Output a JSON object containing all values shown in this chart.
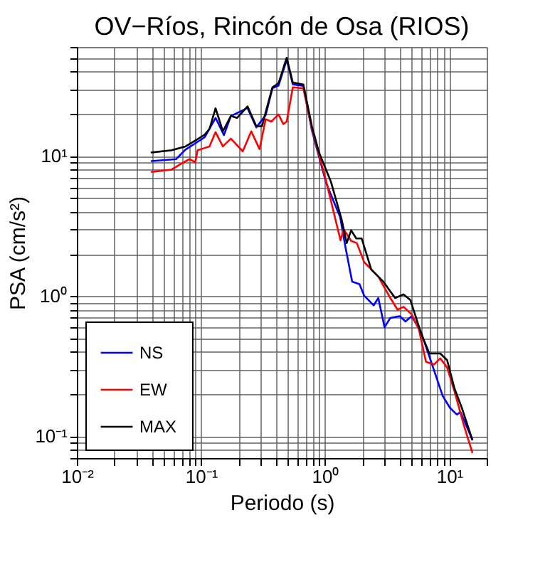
{
  "chart_data": {
    "type": "line",
    "title": "OV−Ríos, Rincón de Osa (RIOS)",
    "xlabel": "Periodo (s)",
    "ylabel": "PSA (cm/s²)",
    "log": "xy",
    "grid": true,
    "legend": "bottom left",
    "line_style": "solid",
    "marker": "none",
    "xlim": [
      0.01,
      20
    ],
    "ylim": [
      0.07,
      60
    ],
    "xticks": [
      {
        "value": 0.01,
        "label": "10⁻²"
      },
      {
        "value": 0.02,
        "label": null
      },
      {
        "value": 0.03,
        "label": null
      },
      {
        "value": 0.04,
        "label": null
      },
      {
        "value": 0.05,
        "label": null
      },
      {
        "value": 0.06,
        "label": null
      },
      {
        "value": 0.07,
        "label": null
      },
      {
        "value": 0.08,
        "label": null
      },
      {
        "value": 0.09,
        "label": null
      },
      {
        "value": 0.1,
        "label": "10⁻¹"
      },
      {
        "value": 0.2,
        "label": null
      },
      {
        "value": 0.3,
        "label": null
      },
      {
        "value": 0.4,
        "label": null
      },
      {
        "value": 0.5,
        "label": null
      },
      {
        "value": 0.6,
        "label": null
      },
      {
        "value": 0.7,
        "label": null
      },
      {
        "value": 0.8,
        "label": null
      },
      {
        "value": 0.9,
        "label": null
      },
      {
        "value": 1,
        "label": "10⁰"
      },
      {
        "value": 2,
        "label": null
      },
      {
        "value": 3,
        "label": null
      },
      {
        "value": 4,
        "label": null
      },
      {
        "value": 5,
        "label": null
      },
      {
        "value": 6,
        "label": null
      },
      {
        "value": 7,
        "label": null
      },
      {
        "value": 8,
        "label": null
      },
      {
        "value": 9,
        "label": null
      },
      {
        "value": 10,
        "label": "10¹"
      },
      {
        "value": 20,
        "label": null
      }
    ],
    "yticks": [
      {
        "value": 0.07,
        "label": null
      },
      {
        "value": 0.08,
        "label": null
      },
      {
        "value": 0.09,
        "label": null
      },
      {
        "value": 0.1,
        "label": "10⁻¹"
      },
      {
        "value": 0.2,
        "label": null
      },
      {
        "value": 0.3,
        "label": null
      },
      {
        "value": 0.4,
        "label": null
      },
      {
        "value": 0.5,
        "label": null
      },
      {
        "value": 0.6,
        "label": null
      },
      {
        "value": 0.7,
        "label": null
      },
      {
        "value": 0.8,
        "label": null
      },
      {
        "value": 0.9,
        "label": null
      },
      {
        "value": 1,
        "label": "10⁰"
      },
      {
        "value": 2,
        "label": null
      },
      {
        "value": 3,
        "label": null
      },
      {
        "value": 4,
        "label": null
      },
      {
        "value": 5,
        "label": null
      },
      {
        "value": 6,
        "label": null
      },
      {
        "value": 7,
        "label": null
      },
      {
        "value": 8,
        "label": null
      },
      {
        "value": 9,
        "label": null
      },
      {
        "value": 10,
        "label": "10¹"
      },
      {
        "value": 20,
        "label": null
      },
      {
        "value": 30,
        "label": null
      },
      {
        "value": 40,
        "label": null
      },
      {
        "value": 50,
        "label": null
      },
      {
        "value": 60,
        "label": null
      }
    ],
    "series": [
      {
        "name": "NS",
        "color": "#0000ff",
        "x": [
          0.04,
          0.063,
          0.075,
          0.107,
          0.131,
          0.153,
          0.174,
          0.237,
          0.279,
          0.332,
          0.376,
          0.421,
          0.49,
          0.549,
          0.667,
          0.782,
          1.02,
          1.32,
          1.45,
          1.65,
          1.89,
          2.06,
          2.46,
          2.68,
          3.01,
          3.35,
          3.99,
          4.44,
          4.98,
          5.94,
          7.4,
          8.83,
          10.1,
          11.5,
          12.3,
          15.3
        ],
        "values": [
          9.2,
          9.5,
          11.1,
          13.6,
          18.7,
          14.1,
          19.3,
          22,
          16,
          19.6,
          30.4,
          31.8,
          48.6,
          32.4,
          31.7,
          15.2,
          6.4,
          3.67,
          2.29,
          1.27,
          1.22,
          1.01,
          0.86,
          0.97,
          0.6,
          0.7,
          0.72,
          0.66,
          0.72,
          0.55,
          0.31,
          0.195,
          0.16,
          0.143,
          0.149,
          0.095
        ]
      },
      {
        "name": "EW",
        "color": "#ff0000",
        "x": [
          0.04,
          0.058,
          0.069,
          0.081,
          0.09,
          0.094,
          0.107,
          0.117,
          0.131,
          0.15,
          0.174,
          0.217,
          0.254,
          0.296,
          0.332,
          0.369,
          0.421,
          0.46,
          0.49,
          0.549,
          0.667,
          0.782,
          1.02,
          1.33,
          1.41,
          1.62,
          1.8,
          2.06,
          2.68,
          3.35,
          3.83,
          4.28,
          4.98,
          5.69,
          6.49,
          7.53,
          8.45,
          9.6,
          11,
          13.1,
          15.3
        ],
        "values": [
          7.7,
          8,
          8.8,
          9.5,
          9,
          11,
          11.4,
          11.7,
          14.8,
          11.7,
          13.3,
          10.8,
          15,
          11.2,
          18.3,
          17.6,
          19.8,
          16.9,
          17.6,
          30.9,
          30.4,
          15.7,
          6.6,
          2.5,
          3,
          2.48,
          2.39,
          1.75,
          1.38,
          0.97,
          0.8,
          0.84,
          0.74,
          0.58,
          0.34,
          0.325,
          0.36,
          0.31,
          0.21,
          0.12,
          0.077
        ]
      },
      {
        "name": "MAX",
        "color": "#000000",
        "x": [
          0.04,
          0.058,
          0.075,
          0.09,
          0.107,
          0.117,
          0.131,
          0.15,
          0.174,
          0.195,
          0.237,
          0.279,
          0.31,
          0.332,
          0.376,
          0.421,
          0.49,
          0.549,
          0.667,
          0.782,
          0.892,
          1.11,
          1.36,
          1.49,
          1.62,
          1.78,
          1.97,
          2.35,
          2.94,
          3.66,
          4.28,
          4.85,
          5.94,
          6.91,
          8.45,
          9.6,
          11,
          12.6,
          15.3
        ],
        "values": [
          10.6,
          11,
          11.7,
          12.9,
          14.2,
          15.6,
          21.9,
          15,
          19.3,
          18.7,
          22.6,
          16.3,
          16.3,
          20.6,
          30.9,
          33,
          50.2,
          33.4,
          32.4,
          16.3,
          10.6,
          6.6,
          3.5,
          2.39,
          2.95,
          2.58,
          2.58,
          1.55,
          1.27,
          0.97,
          1.03,
          0.94,
          0.54,
          0.39,
          0.39,
          0.35,
          0.22,
          0.16,
          0.095
        ]
      }
    ]
  }
}
